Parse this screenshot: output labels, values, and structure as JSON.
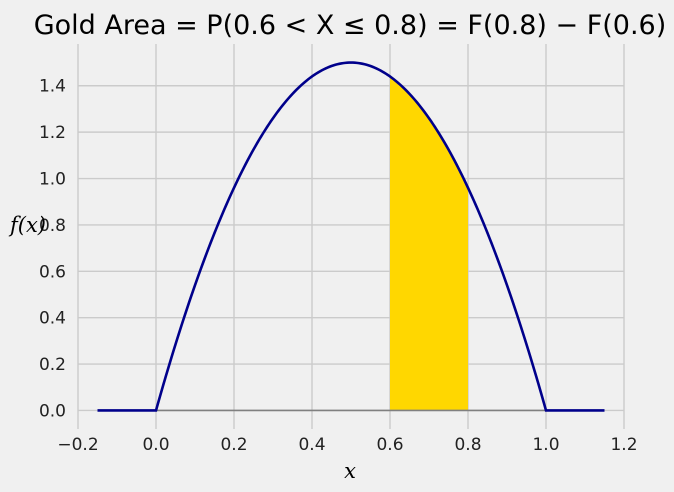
{
  "chart_data": {
    "type": "area",
    "title": "Gold Area $= P(0.6 < X \\leq 0.8) = F(0.8) - F(0.6)$",
    "title_display": "Gold Area  = P(0.6 < X ≤ 0.8) = F(0.8) − F(0.6)",
    "xlabel": "x",
    "ylabel": "f(x)",
    "xlim": [
      -0.2,
      1.2
    ],
    "ylim": [
      -0.08,
      1.58
    ],
    "xticks": [
      -0.2,
      0.0,
      0.2,
      0.4,
      0.6,
      0.8,
      1.0,
      1.2
    ],
    "xtick_labels": [
      "−0.2",
      "0.0",
      "0.2",
      "0.4",
      "0.6",
      "0.8",
      "1.0",
      "1.2"
    ],
    "yticks": [
      0.0,
      0.2,
      0.4,
      0.6,
      0.8,
      1.0,
      1.2,
      1.4
    ],
    "ytick_labels": [
      "0.0",
      "0.2",
      "0.4",
      "0.6",
      "0.8",
      "1.0",
      "1.2",
      "1.4"
    ],
    "grid": true,
    "density": "f(x) = 6x(1 - x) for 0 <= x <= 1, else 0",
    "curve_domain": [
      -0.15,
      1.15
    ],
    "series": [
      {
        "x": [
          -0.15,
          0.0,
          0.05,
          0.1,
          0.15,
          0.2,
          0.25,
          0.3,
          0.35,
          0.4,
          0.45,
          0.5,
          0.55,
          0.6,
          0.65,
          0.7,
          0.75,
          0.8,
          0.85,
          0.9,
          0.95,
          1.0,
          1.15
        ],
        "y": [
          0.0,
          0.0,
          0.285,
          0.54,
          0.765,
          0.96,
          1.125,
          1.26,
          1.365,
          1.44,
          1.485,
          1.5,
          1.485,
          1.44,
          1.365,
          1.26,
          1.125,
          0.96,
          0.765,
          0.54,
          0.285,
          0.0,
          0.0
        ]
      }
    ],
    "shaded_region": {
      "from": 0.6,
      "to": 0.8
    }
  },
  "colors": {
    "background": "#f0f0f0",
    "grid": "#cbcbcb",
    "curve": "#00008b",
    "fill": "#ffd700",
    "baseline": "#808080"
  }
}
